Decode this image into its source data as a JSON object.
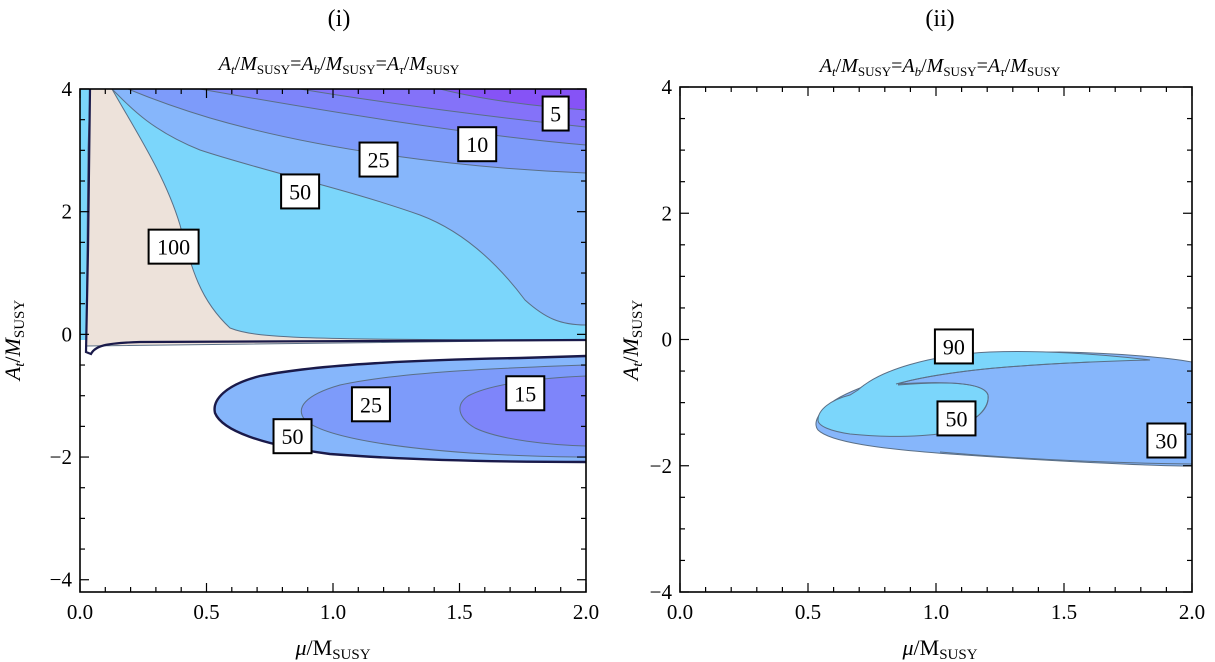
{
  "colors": {
    "beige": "#ede2da",
    "cyan": "#7bd6fb",
    "light_blue": "#86b6fb",
    "blue": "#7d9bfa",
    "blue_violet": "#7e85fa",
    "violet": "#8472f9",
    "deep_violet": "#8653f6",
    "contour_line": "#5a6f86",
    "boundary_line": "#1a1a4a"
  },
  "chart_data": [
    {
      "panel": "(i)",
      "type": "contour",
      "title": "A_t/M_SUSY=A_b/M_SUSY=A_τ/M_SUSY",
      "xlabel": "μ/M_SUSY",
      "ylabel": "A_t/M_SUSY",
      "xlim": [
        0,
        2
      ],
      "ylim": [
        -4.2,
        4
      ],
      "xticks": [
        "0.0",
        "0.5",
        "1.0",
        "1.5",
        "2.0"
      ],
      "yticks": [
        "4",
        "2",
        "0",
        "−2",
        "−4"
      ],
      "contour_labels": [
        {
          "text": "5",
          "x": 1.88,
          "y": 3.6
        },
        {
          "text": "10",
          "x": 1.57,
          "y": 3.1
        },
        {
          "text": "25",
          "x": 1.18,
          "y": 2.85
        },
        {
          "text": "50",
          "x": 0.87,
          "y": 2.33
        },
        {
          "text": "100",
          "x": 0.37,
          "y": 1.43
        },
        {
          "text": "50",
          "x": 0.84,
          "y": -1.66
        },
        {
          "text": "25",
          "x": 1.15,
          "y": -1.14
        },
        {
          "text": "15",
          "x": 1.76,
          "y": -0.96
        }
      ]
    },
    {
      "panel": "(ii)",
      "type": "contour",
      "title": "A_t/M_SUSY=A_b/M_SUSY=A_τ/M_SUSY",
      "xlabel": "μ/M_SUSY",
      "ylabel": "A_t/M_SUSY",
      "xlim": [
        0,
        2
      ],
      "ylim": [
        -4,
        4
      ],
      "xticks": [
        "0.0",
        "0.5",
        "1.0",
        "1.5",
        "2.0"
      ],
      "yticks": [
        "4",
        "2",
        "0",
        "−2",
        "−4"
      ],
      "contour_labels": [
        {
          "text": "90",
          "x": 1.07,
          "y": -0.11
        },
        {
          "text": "50",
          "x": 1.08,
          "y": -1.25
        },
        {
          "text": "30",
          "x": 1.9,
          "y": -1.6
        }
      ]
    }
  ],
  "text": {
    "left_tag": "(i)",
    "right_tag": "(ii)",
    "title_A": "A",
    "title_t": "t",
    "title_b": "b",
    "title_tau": "τ",
    "title_M": "M",
    "title_SUSY": "SUSY",
    "mu": "μ",
    "slash_M": "/M"
  }
}
